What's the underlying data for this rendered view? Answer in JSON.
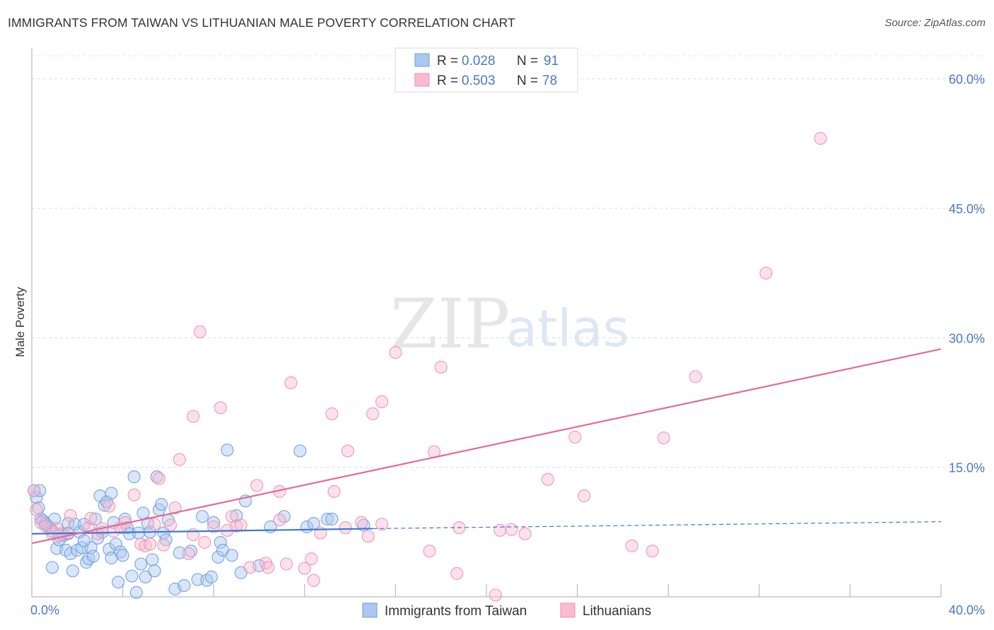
{
  "header": {
    "title": "IMMIGRANTS FROM TAIWAN VS LITHUANIAN MALE POVERTY CORRELATION CHART",
    "source": "Source: ZipAtlas.com"
  },
  "watermark": {
    "zip": "ZIP",
    "atlas": "atlas"
  },
  "colors": {
    "blue_fill": "#aac8f0",
    "blue_stroke": "#6b9be0",
    "blue_line": "#3a7ad5",
    "pink_fill": "#f7bcd0",
    "pink_stroke": "#ec8fb0",
    "pink_line": "#e56a94",
    "tick_label": "#4a78c8"
  },
  "chart_data": {
    "type": "scatter",
    "title": "IMMIGRANTS FROM TAIWAN VS LITHUANIAN MALE POVERTY CORRELATION CHART",
    "xlabel": "",
    "ylabel": "Male Poverty",
    "xlim": [
      0,
      40
    ],
    "ylim": [
      0,
      63
    ],
    "x_tick_labels": [
      "0.0%",
      "40.0%"
    ],
    "y_ticks": [
      15,
      30,
      45,
      60
    ],
    "y_tick_labels": [
      "15.0%",
      "30.0%",
      "45.0%",
      "60.0%"
    ],
    "legend": {
      "position": "top-center",
      "entries": [
        {
          "name": "Immigrants from Taiwan",
          "r_label": "R = ",
          "r_value": "0.028",
          "n_label": "N = ",
          "n_value": "91"
        },
        {
          "name": "Lithuanians",
          "r_label": "R = ",
          "r_value": "0.503",
          "n_label": "N = ",
          "n_value": "78"
        }
      ]
    },
    "series": [
      {
        "name": "Immigrants from Taiwan",
        "trend": {
          "x0": 0,
          "y0": 7.3,
          "x1": 15.0,
          "y1": 7.9,
          "dash_x1": 40,
          "dash_y1": 8.7
        },
        "points": [
          [
            0.1,
            12.3
          ],
          [
            0.2,
            11.5
          ],
          [
            0.3,
            10.3
          ],
          [
            0.4,
            9.0
          ],
          [
            0.5,
            8.8
          ],
          [
            0.6,
            8.5
          ],
          [
            0.7,
            8.2
          ],
          [
            0.8,
            8.0
          ],
          [
            0.9,
            7.6
          ],
          [
            1.0,
            9.0
          ],
          [
            1.1,
            5.6
          ],
          [
            1.2,
            6.6
          ],
          [
            1.3,
            7.3
          ],
          [
            1.4,
            7.1
          ],
          [
            1.5,
            5.4
          ],
          [
            1.6,
            8.5
          ],
          [
            1.7,
            5.0
          ],
          [
            1.8,
            3.0
          ],
          [
            1.9,
            8.4
          ],
          [
            2.0,
            5.4
          ],
          [
            2.1,
            7.5
          ],
          [
            2.2,
            5.7
          ],
          [
            2.3,
            8.4
          ],
          [
            2.4,
            4.0
          ],
          [
            2.5,
            4.4
          ],
          [
            2.6,
            5.7
          ],
          [
            2.7,
            4.7
          ],
          [
            2.8,
            9.0
          ],
          [
            2.9,
            6.8
          ],
          [
            3.0,
            11.7
          ],
          [
            3.1,
            7.5
          ],
          [
            3.2,
            10.6
          ],
          [
            3.3,
            11.0
          ],
          [
            3.4,
            5.5
          ],
          [
            3.5,
            4.5
          ],
          [
            3.6,
            8.6
          ],
          [
            3.7,
            6.1
          ],
          [
            3.8,
            1.7
          ],
          [
            3.9,
            5.2
          ],
          [
            4.0,
            4.8
          ],
          [
            4.1,
            9.0
          ],
          [
            4.2,
            8.0
          ],
          [
            4.3,
            7.3
          ],
          [
            4.4,
            2.4
          ],
          [
            4.5,
            13.9
          ],
          [
            4.6,
            0.5
          ],
          [
            4.7,
            7.4
          ],
          [
            4.8,
            3.8
          ],
          [
            4.9,
            9.7
          ],
          [
            5.0,
            2.3
          ],
          [
            5.1,
            8.5
          ],
          [
            5.2,
            7.5
          ],
          [
            5.3,
            4.3
          ],
          [
            5.4,
            3.0
          ],
          [
            5.5,
            13.9
          ],
          [
            5.6,
            10.1
          ],
          [
            5.7,
            10.7
          ],
          [
            5.8,
            7.4
          ],
          [
            5.9,
            6.6
          ],
          [
            6.0,
            8.9
          ],
          [
            6.3,
            0.9
          ],
          [
            6.5,
            5.1
          ],
          [
            6.7,
            1.3
          ],
          [
            7.0,
            5.3
          ],
          [
            7.3,
            2.0
          ],
          [
            7.5,
            9.3
          ],
          [
            7.7,
            1.9
          ],
          [
            7.9,
            2.3
          ],
          [
            8.0,
            8.6
          ],
          [
            8.2,
            4.6
          ],
          [
            8.3,
            6.3
          ],
          [
            8.4,
            5.4
          ],
          [
            8.6,
            17.0
          ],
          [
            8.8,
            4.8
          ],
          [
            9.0,
            9.4
          ],
          [
            9.2,
            2.8
          ],
          [
            9.4,
            11.1
          ],
          [
            10.0,
            3.6
          ],
          [
            10.5,
            8.1
          ],
          [
            11.1,
            9.3
          ],
          [
            11.8,
            16.9
          ],
          [
            12.1,
            8.1
          ],
          [
            12.4,
            8.5
          ],
          [
            13.0,
            9.0
          ],
          [
            13.2,
            9.0
          ],
          [
            14.6,
            8.3
          ],
          [
            0.35,
            12.3
          ],
          [
            0.9,
            3.4
          ],
          [
            1.6,
            7.3
          ],
          [
            2.3,
            6.5
          ],
          [
            3.5,
            12.0
          ]
        ]
      },
      {
        "name": "Lithuanians",
        "trend": {
          "x0": 0,
          "y0": 6.2,
          "x1": 40,
          "y1": 28.7
        },
        "points": [
          [
            0.1,
            12.3
          ],
          [
            0.2,
            10.1
          ],
          [
            0.4,
            8.6
          ],
          [
            0.6,
            8.2
          ],
          [
            0.9,
            7.3
          ],
          [
            1.1,
            7.9
          ],
          [
            1.6,
            7.4
          ],
          [
            1.7,
            9.4
          ],
          [
            2.5,
            8.0
          ],
          [
            2.6,
            9.1
          ],
          [
            2.9,
            7.3
          ],
          [
            3.1,
            7.9
          ],
          [
            3.4,
            10.5
          ],
          [
            3.6,
            7.6
          ],
          [
            3.9,
            8.0
          ],
          [
            4.5,
            11.8
          ],
          [
            4.8,
            6.1
          ],
          [
            5.0,
            5.9
          ],
          [
            5.2,
            6.1
          ],
          [
            5.4,
            8.4
          ],
          [
            5.6,
            13.7
          ],
          [
            5.8,
            6.0
          ],
          [
            6.1,
            8.3
          ],
          [
            6.5,
            15.9
          ],
          [
            6.9,
            5.0
          ],
          [
            7.1,
            7.2
          ],
          [
            7.1,
            20.9
          ],
          [
            7.4,
            30.7
          ],
          [
            7.6,
            6.3
          ],
          [
            8.0,
            8.1
          ],
          [
            8.3,
            21.9
          ],
          [
            8.6,
            7.7
          ],
          [
            8.8,
            9.3
          ],
          [
            9.0,
            8.2
          ],
          [
            9.2,
            8.3
          ],
          [
            9.6,
            3.4
          ],
          [
            9.9,
            12.9
          ],
          [
            10.3,
            3.9
          ],
          [
            10.4,
            3.4
          ],
          [
            10.9,
            12.2
          ],
          [
            10.9,
            8.9
          ],
          [
            11.2,
            3.8
          ],
          [
            11.4,
            24.8
          ],
          [
            12.0,
            3.3
          ],
          [
            12.3,
            4.4
          ],
          [
            12.4,
            1.9
          ],
          [
            12.7,
            7.4
          ],
          [
            13.2,
            21.2
          ],
          [
            13.3,
            12.2
          ],
          [
            13.8,
            8.0
          ],
          [
            13.9,
            16.9
          ],
          [
            14.5,
            8.6
          ],
          [
            14.8,
            7.0
          ],
          [
            15.0,
            21.2
          ],
          [
            15.4,
            8.4
          ],
          [
            15.4,
            22.6
          ],
          [
            16.0,
            28.3
          ],
          [
            17.5,
            5.3
          ],
          [
            17.7,
            16.8
          ],
          [
            18.0,
            26.6
          ],
          [
            18.7,
            2.7
          ],
          [
            18.8,
            8.0
          ],
          [
            20.4,
            0.2
          ],
          [
            20.6,
            7.7
          ],
          [
            21.1,
            7.8
          ],
          [
            21.7,
            7.3
          ],
          [
            22.7,
            13.6
          ],
          [
            23.9,
            18.5
          ],
          [
            24.3,
            11.7
          ],
          [
            26.4,
            5.9
          ],
          [
            27.3,
            5.3
          ],
          [
            27.8,
            18.4
          ],
          [
            29.2,
            25.5
          ],
          [
            32.3,
            37.5
          ],
          [
            34.7,
            53.1
          ],
          [
            1.2,
            7.1
          ],
          [
            4.1,
            8.6
          ],
          [
            6.3,
            10.3
          ]
        ]
      }
    ]
  }
}
